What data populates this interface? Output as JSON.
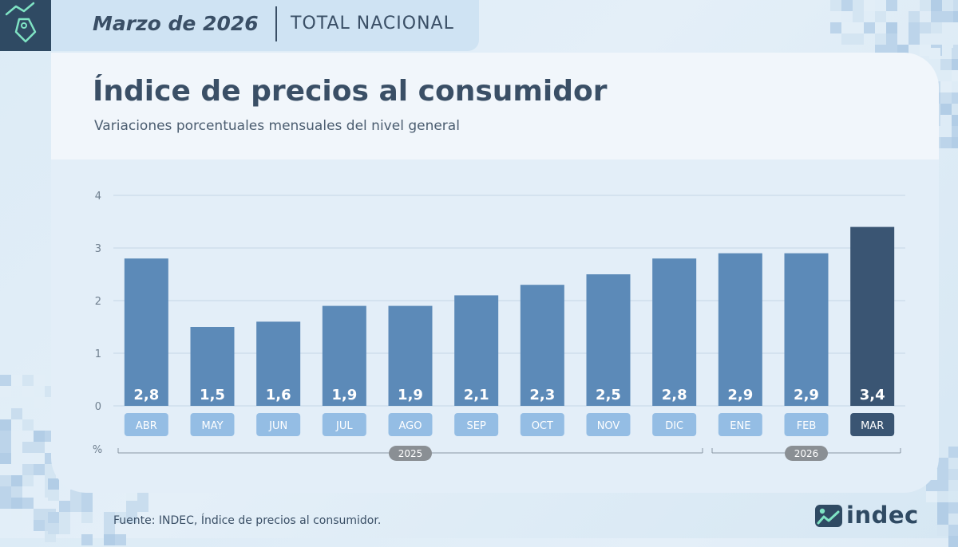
{
  "header": {
    "period": "Marzo de 2026",
    "scope": "TOTAL NACIONAL"
  },
  "title": "Índice de precios al consumidor",
  "subtitle": "Variaciones porcentuales mensuales del nivel general",
  "source": "Fuente: INDEC, Índice de precios al consumidor.",
  "brand": {
    "name": "indec",
    "logo_icon": "indec-logo-icon",
    "corner_icon": "price-tag-icon"
  },
  "colors": {
    "navy": "#2f4a63",
    "bar": "#5c8ab8",
    "bar_highlight": "#3a5573",
    "label_bg": "#94bde4",
    "year_badge": "#8a8f94"
  },
  "chart_data": {
    "type": "bar",
    "categories": [
      "ABR",
      "MAY",
      "JUN",
      "JUL",
      "AGO",
      "SEP",
      "OCT",
      "NOV",
      "DIC",
      "ENE",
      "FEB",
      "MAR"
    ],
    "values": [
      2.8,
      1.5,
      1.6,
      1.9,
      1.9,
      2.1,
      2.3,
      2.5,
      2.8,
      2.9,
      2.9,
      3.4
    ],
    "value_labels": [
      "2,8",
      "1,5",
      "1,6",
      "1,9",
      "1,9",
      "2,1",
      "2,3",
      "2,5",
      "2,8",
      "2,9",
      "2,9",
      "3,4"
    ],
    "highlight_index": 11,
    "ylim": [
      0,
      4
    ],
    "yticks": [
      0,
      1,
      2,
      3,
      4
    ],
    "unit_label": "%",
    "grid": true,
    "year_groups": [
      {
        "label": "2025",
        "start": 0,
        "end": 8
      },
      {
        "label": "2026",
        "start": 9,
        "end": 11
      }
    ]
  }
}
